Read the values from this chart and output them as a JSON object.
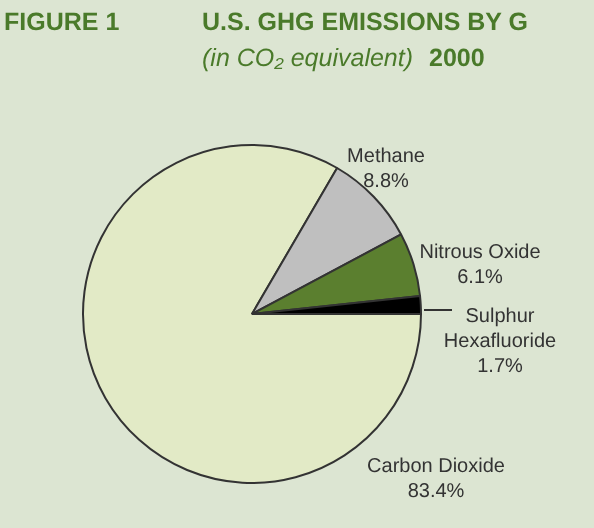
{
  "chart_data": {
    "type": "pie",
    "title": "U.S. GHG EMISSIONS BY G",
    "subtitle": "(in CO₂ equivalent)",
    "annotations": [
      "FIGURE 1",
      "2000"
    ],
    "categories": [
      "Carbon Dioxide",
      "Methane",
      "Nitrous Oxide",
      "Sulphur Hexafluoride"
    ],
    "values": [
      83.4,
      8.8,
      6.1,
      1.7
    ],
    "colors": [
      "#e2eac6",
      "#bfbfbf",
      "#5b7f2f",
      "#000000"
    ],
    "value_labels": [
      "83.4%",
      "8.8%",
      "6.1%",
      "1.7%"
    ]
  }
}
